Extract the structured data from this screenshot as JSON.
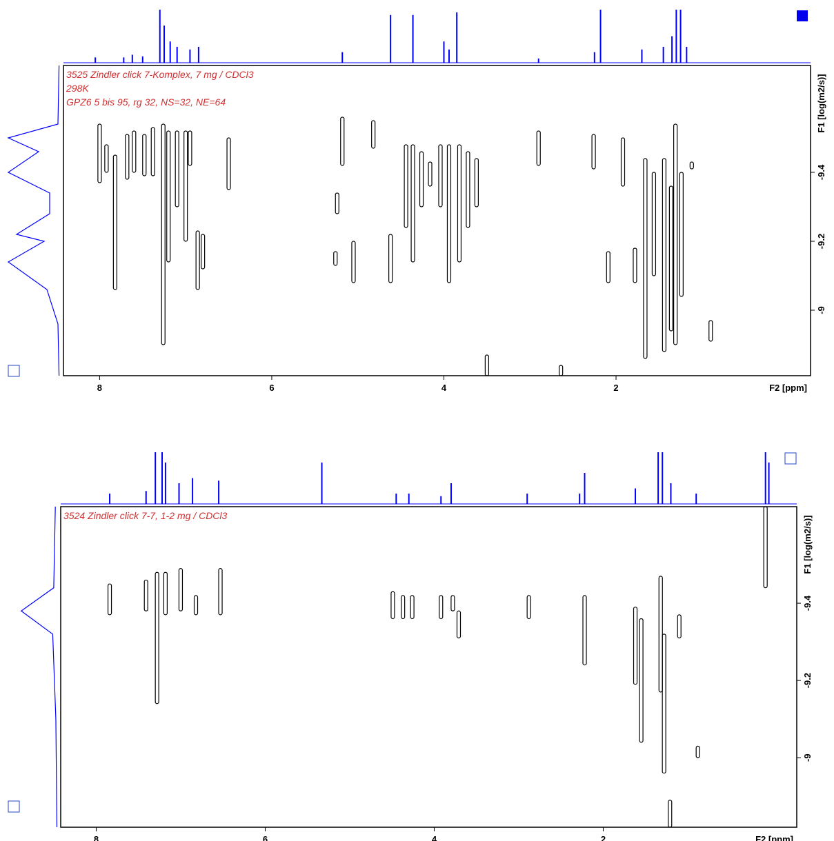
{
  "chart_data": [
    {
      "type": "contour",
      "annotations": [
        "3525 Zindler click 7-Komplex, 7 mg / CDCl3",
        "298K",
        "GPZ6 5 bis 95, rg 32, NS=32, NE=64"
      ],
      "xlabel": "F2 [ppm]",
      "ylabel": "F1 [log(m2/s)]",
      "xlim": [
        8.42,
        -0.26
      ],
      "ylim": [
        -9.71,
        -8.81
      ],
      "xticks": [
        8,
        6,
        4,
        2
      ],
      "yticks": [
        -9.4,
        -9.2,
        -9.0
      ],
      "contour_color": "#000000",
      "projection_color": "#0000ff",
      "annotation_color": "#d03030",
      "peaks": {
        "x": [
          8.0,
          7.92,
          7.82,
          7.68,
          7.6,
          7.48,
          7.38,
          7.26,
          7.2,
          7.1,
          7.0,
          6.95,
          6.86,
          6.8,
          6.5,
          5.24,
          5.18,
          5.26,
          5.05,
          4.82,
          4.62,
          4.44,
          4.36,
          4.26,
          4.16,
          4.04,
          3.94,
          3.82,
          3.72,
          3.62,
          3.5,
          2.9,
          2.64,
          2.26,
          2.09,
          1.92,
          1.78,
          1.66,
          1.56,
          1.44,
          1.36,
          1.31,
          1.24,
          1.12,
          0.9
        ],
        "ymin": [
          -9.54,
          -9.48,
          -9.45,
          -9.51,
          -9.52,
          -9.51,
          -9.53,
          -9.54,
          -9.52,
          -9.52,
          -9.52,
          -9.52,
          -9.23,
          -9.22,
          -9.5,
          -9.34,
          -9.56,
          -9.17,
          -9.2,
          -9.55,
          -9.22,
          -9.48,
          -9.48,
          -9.46,
          -9.43,
          -9.48,
          -9.48,
          -9.48,
          -9.46,
          -9.44,
          -8.87,
          -9.52,
          -8.84,
          -9.51,
          -9.17,
          -9.5,
          -9.18,
          -9.44,
          -9.4,
          -9.44,
          -9.36,
          -9.54,
          -9.4,
          -9.43,
          -8.97
        ],
        "ymax": [
          -9.37,
          -9.4,
          -9.06,
          -9.38,
          -9.4,
          -9.39,
          -9.39,
          -8.9,
          -9.14,
          -9.3,
          -9.2,
          -9.42,
          -9.06,
          -9.12,
          -9.35,
          -9.28,
          -9.42,
          -9.13,
          -9.08,
          -9.47,
          -9.08,
          -9.24,
          -9.14,
          -9.3,
          -9.36,
          -9.3,
          -9.08,
          -9.14,
          -9.24,
          -9.3,
          -8.81,
          -9.42,
          -8.81,
          -9.41,
          -9.08,
          -9.36,
          -9.08,
          -8.86,
          -9.1,
          -8.88,
          -8.94,
          -8.9,
          -9.04,
          -9.41,
          -8.91
        ]
      },
      "projection_f2": {
        "x": [
          8.05,
          7.72,
          7.62,
          7.5,
          7.3,
          7.25,
          7.18,
          7.1,
          6.95,
          6.85,
          5.18,
          4.62,
          4.36,
          4.0,
          3.94,
          3.85,
          2.9,
          2.25,
          2.18,
          1.7,
          1.45,
          1.35,
          1.3,
          1.25,
          1.18
        ],
        "heights": [
          10,
          10,
          15,
          12,
          100,
          70,
          40,
          30,
          25,
          30,
          20,
          90,
          90,
          40,
          25,
          95,
          8,
          20,
          100,
          25,
          30,
          50,
          100,
          100,
          30
        ]
      },
      "projection_f1": {
        "y": [
          -9.71,
          -9.54,
          -9.5,
          -9.46,
          -9.4,
          -9.34,
          -9.28,
          -9.22,
          -9.2,
          -9.14,
          -9.06,
          -8.96,
          -8.81
        ],
        "intensity": [
          3,
          5,
          95,
          40,
          95,
          20,
          20,
          80,
          30,
          95,
          25,
          5,
          3
        ]
      }
    },
    {
      "type": "contour",
      "annotations": [
        "3524 Zindler click 7-7, 1-2 mg / CDCl3"
      ],
      "xlabel": "F2 [ppm]",
      "ylabel": "F1 [log(m2/s)]",
      "xlim": [
        8.42,
        -0.29
      ],
      "ylim": [
        -9.65,
        -8.82
      ],
      "xticks": [
        8,
        6,
        4,
        2
      ],
      "yticks": [
        -9.4,
        -9.2,
        -9.0
      ],
      "contour_color": "#000000",
      "projection_color": "#0000ff",
      "annotation_color": "#d03030",
      "peaks": {
        "x": [
          7.84,
          7.41,
          7.28,
          7.18,
          7.0,
          6.82,
          6.53,
          4.49,
          4.37,
          4.26,
          3.92,
          3.78,
          3.71,
          2.88,
          2.22,
          1.62,
          1.55,
          1.32,
          1.28,
          1.21,
          1.1,
          0.88,
          0.08
        ],
        "ymin": [
          -9.45,
          -9.46,
          -9.48,
          -9.48,
          -9.49,
          -9.42,
          -9.49,
          -9.43,
          -9.42,
          -9.42,
          -9.42,
          -9.42,
          -9.38,
          -9.42,
          -9.42,
          -9.39,
          -9.36,
          -9.47,
          -9.32,
          -8.89,
          -9.37,
          -9.03,
          -9.65
        ],
        "ymax": [
          -9.37,
          -9.38,
          -9.14,
          -9.37,
          -9.38,
          -9.37,
          -9.37,
          -9.36,
          -9.36,
          -9.36,
          -9.36,
          -9.38,
          -9.31,
          -9.36,
          -9.24,
          -9.19,
          -9.04,
          -9.17,
          -8.96,
          -8.82,
          -9.31,
          -9.0,
          -9.44
        ]
      },
      "projection_f2": {
        "x": [
          7.84,
          7.41,
          7.3,
          7.22,
          7.18,
          7.02,
          6.86,
          6.55,
          5.33,
          4.45,
          4.3,
          3.92,
          3.8,
          2.9,
          2.28,
          2.22,
          1.62,
          1.35,
          1.3,
          1.2,
          0.9,
          0.08,
          0.04
        ],
        "heights": [
          20,
          25,
          100,
          100,
          80,
          40,
          50,
          45,
          80,
          20,
          20,
          15,
          40,
          20,
          20,
          60,
          30,
          100,
          100,
          40,
          20,
          100,
          80
        ]
      },
      "projection_f1": {
        "y": [
          -9.65,
          -9.44,
          -9.38,
          -9.32,
          -9.1,
          -8.82
        ],
        "intensity": [
          5,
          8,
          70,
          10,
          4,
          2
        ]
      }
    }
  ]
}
